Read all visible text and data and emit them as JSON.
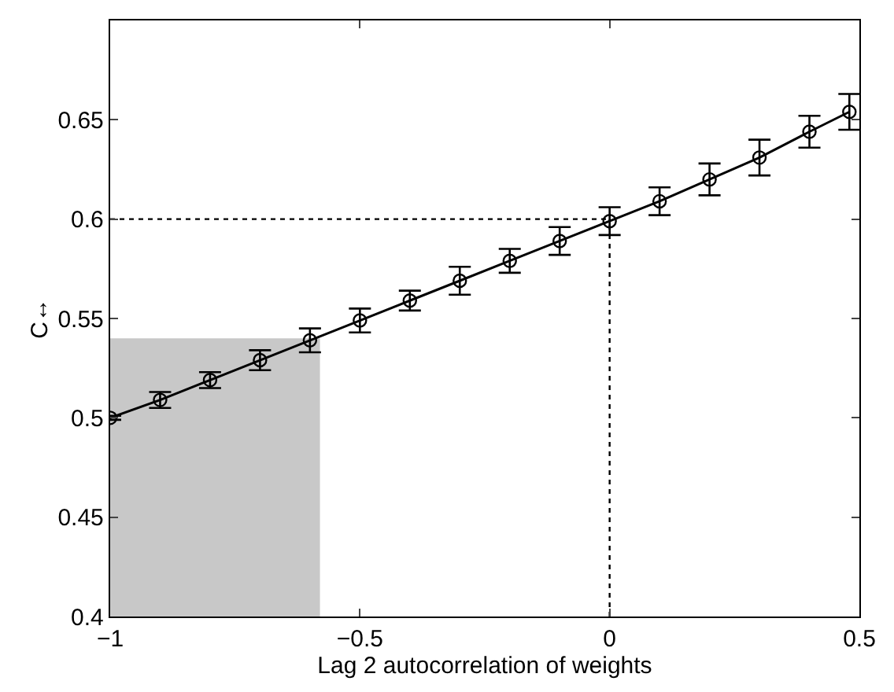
{
  "chart_data": {
    "type": "line",
    "xlabel": "Lag 2 autocorrelation of weights",
    "ylabel": "C↔",
    "xlim": [
      -1,
      0.5
    ],
    "ylim": [
      0.4,
      0.7
    ],
    "xticks": [
      {
        "value": -1,
        "label": "−1"
      },
      {
        "value": -0.5,
        "label": "−0.5"
      },
      0,
      0.5
    ],
    "yticks": [
      0.4,
      0.45,
      0.5,
      0.55,
      0.6,
      0.65
    ],
    "grid": false,
    "series": [
      {
        "type": "area",
        "color": "#c8c8c8",
        "x": [
          -1,
          -0.58
        ],
        "values": [
          0.54,
          0.54
        ]
      },
      {
        "color": "#000000",
        "marker": "circle",
        "line_style": "solid",
        "x": [
          -1,
          -0.9,
          -0.8,
          -0.7,
          -0.6,
          -0.5,
          -0.4,
          -0.3,
          -0.2,
          -0.1,
          0,
          0.1,
          0.2,
          0.3,
          0.4,
          0.48
        ],
        "values": [
          0.5,
          0.509,
          0.519,
          0.529,
          0.539,
          0.549,
          0.559,
          0.569,
          0.579,
          0.589,
          0.599,
          0.609,
          0.62,
          0.631,
          0.644,
          0.654
        ],
        "errors": [
          0.001,
          0.004,
          0.004,
          0.005,
          0.006,
          0.006,
          0.005,
          0.007,
          0.006,
          0.007,
          0.007,
          0.007,
          0.008,
          0.009,
          0.008,
          0.009
        ]
      }
    ],
    "ref_lines": [
      {
        "axis": "y",
        "value": 0.6,
        "line_style": "dotted",
        "color": "#000000"
      },
      {
        "axis": "x",
        "value": 0,
        "line_style": "dotted",
        "color": "#000000"
      }
    ]
  }
}
